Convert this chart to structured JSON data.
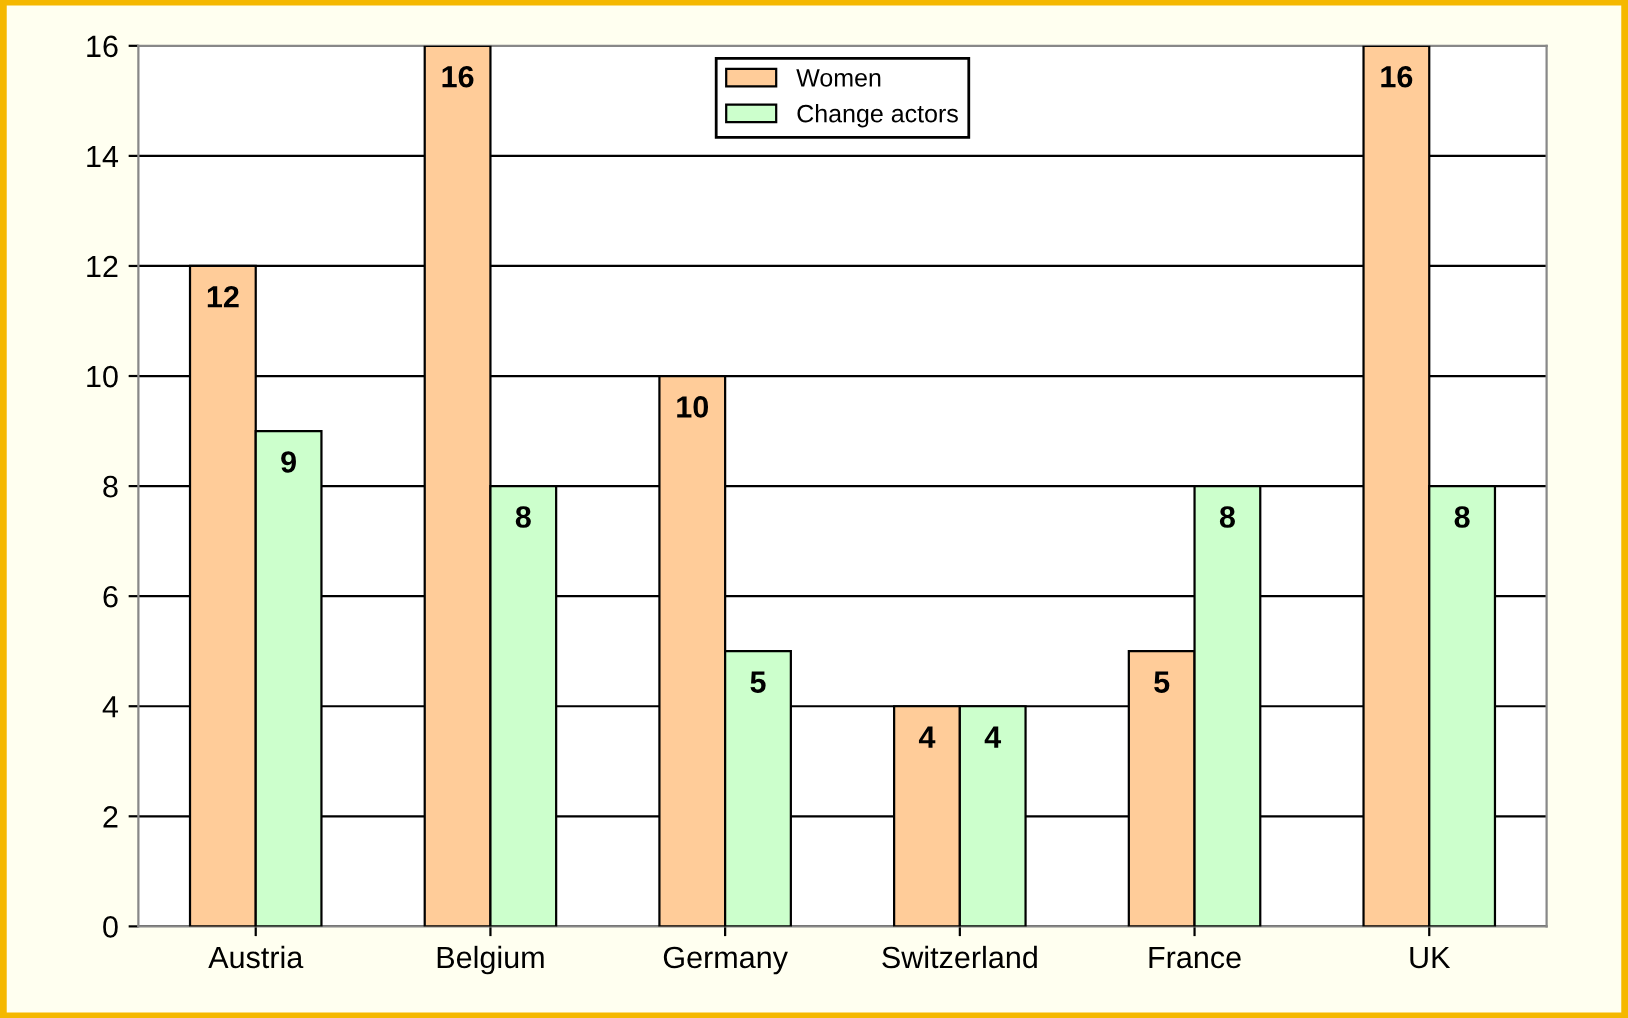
{
  "chart_data": {
    "type": "bar",
    "categories": [
      "Austria",
      "Belgium",
      "Germany",
      "Switzerland",
      "France",
      "UK"
    ],
    "series": [
      {
        "name": "Women",
        "color": "#ffcc99",
        "values": [
          12,
          16,
          10,
          4,
          5,
          16
        ]
      },
      {
        "name": "Change actors",
        "color": "#ccffcc",
        "values": [
          9,
          8,
          5,
          4,
          8,
          8
        ]
      }
    ],
    "ylim": [
      0,
      16
    ],
    "yticks": [
      0,
      2,
      4,
      6,
      8,
      10,
      12,
      14,
      16
    ],
    "grid": "y",
    "legend": "top",
    "data_labels": true
  }
}
